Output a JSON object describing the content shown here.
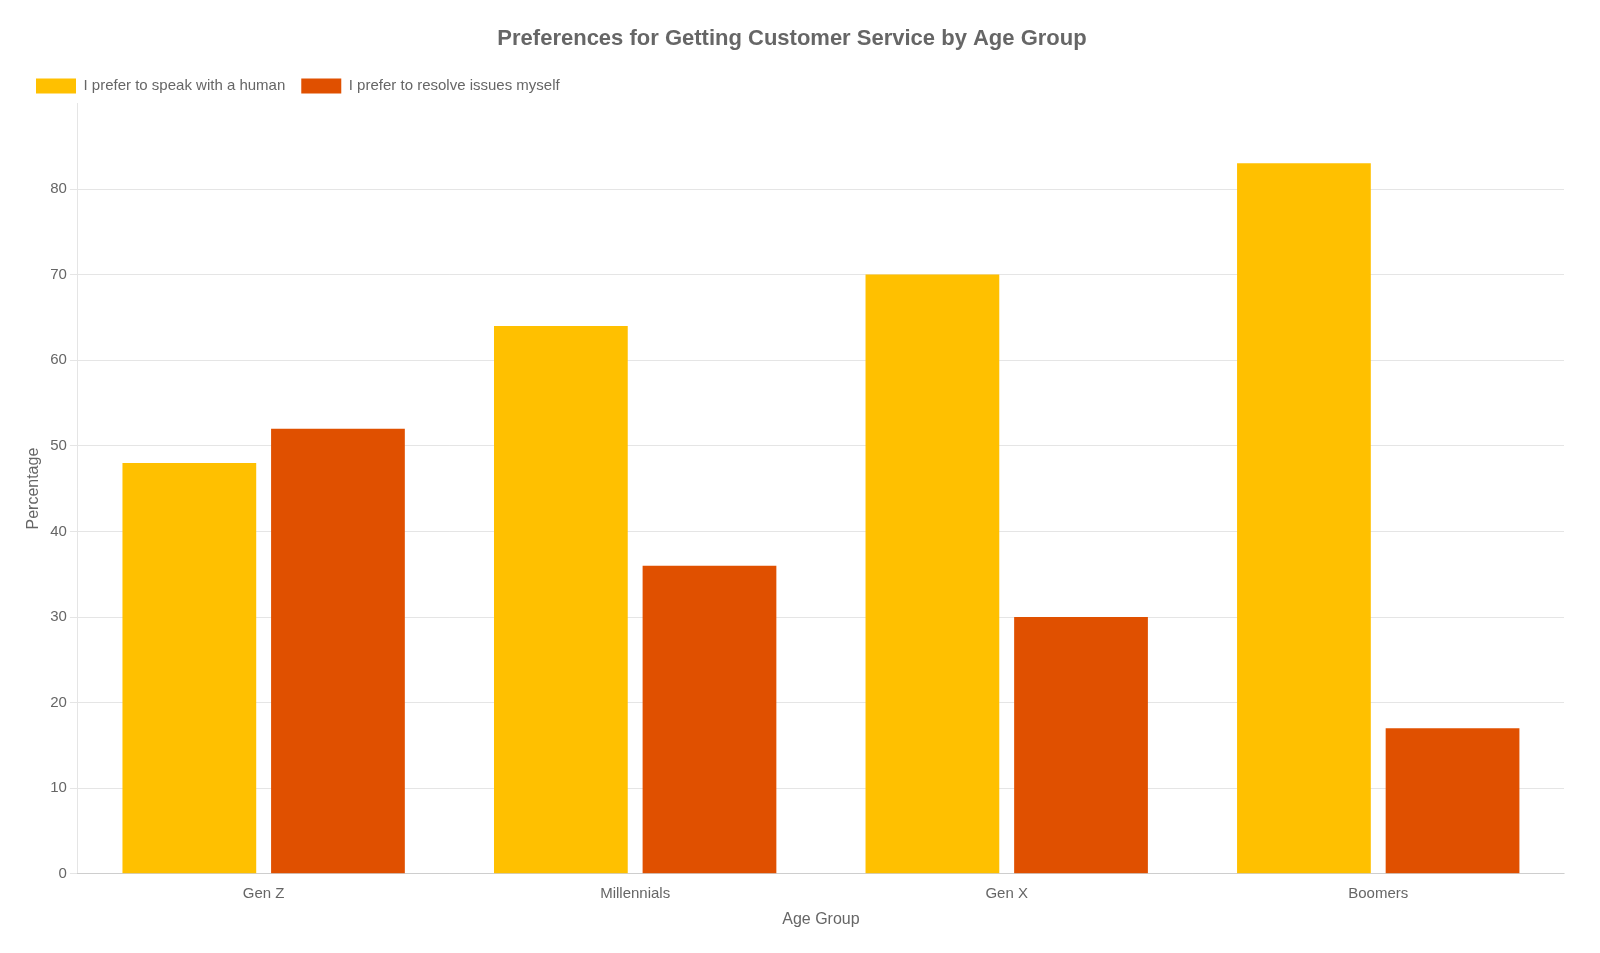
{
  "chart_data": {
    "type": "bar",
    "title": "Preferences for Getting Customer Service by Age Group",
    "xlabel": "Age Group",
    "ylabel": "Percentage",
    "categories": [
      "Gen Z",
      "Millennials",
      "Gen X",
      "Boomers"
    ],
    "series": [
      {
        "name": "I prefer to speak with a human",
        "color": "#FFC000",
        "values": [
          48,
          64,
          70,
          83
        ]
      },
      {
        "name": "I prefer to resolve issues myself",
        "color": "#E05000",
        "values": [
          52,
          36,
          30,
          17
        ]
      }
    ],
    "ylim": [
      0,
      90
    ],
    "yticks": [
      0,
      10,
      20,
      30,
      40,
      50,
      60,
      70,
      80
    ],
    "grid": true,
    "legend": "upper left"
  }
}
